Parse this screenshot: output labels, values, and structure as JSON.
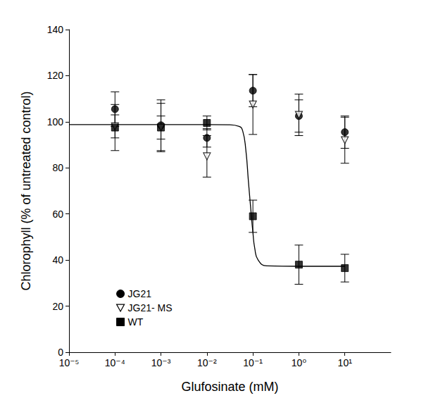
{
  "chart_data": {
    "type": "scatter",
    "xlabel": "Glufosinate (mM)",
    "ylabel": "Chlorophyll (% of untreated control)",
    "log": "x",
    "grid": false,
    "legend": "lower left",
    "xlim": [
      1e-05,
      100
    ],
    "xticks": [
      {
        "value": 1e-05,
        "label": "10⁻⁵"
      },
      {
        "value": 0.0001,
        "label": "10⁻⁴"
      },
      {
        "value": 0.001,
        "label": "10⁻³"
      },
      {
        "value": 0.01,
        "label": "10⁻²"
      },
      {
        "value": 0.1,
        "label": "10⁻¹"
      },
      {
        "value": 1,
        "label": "10⁰"
      },
      {
        "value": 10,
        "label": "10¹"
      }
    ],
    "ylim": [
      0,
      140
    ],
    "yticks": [
      0,
      20,
      40,
      60,
      80,
      100,
      120,
      140
    ],
    "x": [
      0.0001,
      0.001,
      0.01,
      0.1,
      1,
      10
    ],
    "series": [
      {
        "name": "JG21",
        "color": "#000000",
        "marker": "circle",
        "values": [
          105.5,
          98.5,
          93,
          113.5,
          102.5,
          95.5
        ],
        "errors": [
          7.5,
          11,
          4,
          7,
          7,
          7
        ]
      },
      {
        "name": "JG21- MS",
        "color": "#000000",
        "marker": "triangle-down-open",
        "values": [
          98,
          97.5,
          85,
          107.5,
          103,
          92
        ],
        "errors": [
          5,
          5,
          9,
          13,
          9,
          10
        ]
      },
      {
        "name": "WT",
        "color": "#000000",
        "marker": "square",
        "values": [
          97.5,
          97.5,
          99.5,
          59,
          38,
          36.5
        ],
        "errors": [
          10,
          10.5,
          3,
          7,
          8.5,
          6
        ],
        "line_style": "solid",
        "fit_x": [
          1e-05,
          0.0001,
          0.001,
          0.01,
          0.03,
          0.05,
          0.06,
          0.07,
          0.08,
          0.09,
          0.1,
          0.11,
          0.13,
          0.2,
          1,
          10
        ],
        "fit_values": [
          98.8,
          98.8,
          98.8,
          98.8,
          98.7,
          98,
          96,
          88,
          74,
          62,
          52,
          45,
          40,
          37.5,
          37.3,
          37.3
        ]
      }
    ]
  }
}
